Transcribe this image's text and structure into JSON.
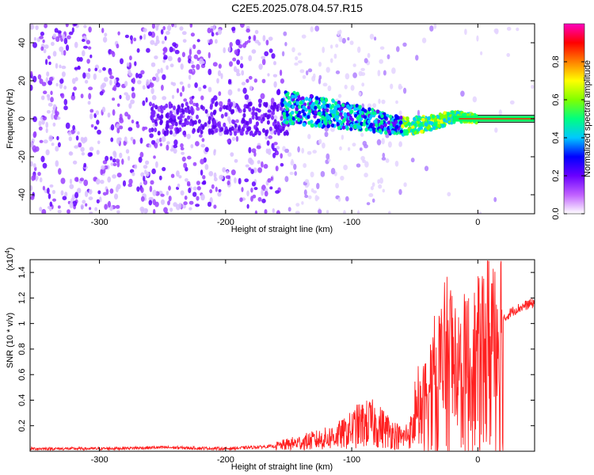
{
  "title": "C2E5.2025.078.04.57.R15",
  "chart_data": [
    {
      "type": "heatmap",
      "xlabel": "Height of straight line (km)",
      "ylabel": "Frequency (Hz)",
      "xlim": [
        -355,
        45
      ],
      "ylim": [
        -50,
        50
      ],
      "xticks": [
        "-300",
        "-200",
        "-100",
        "0"
      ],
      "yticks": [
        "-40",
        "-20",
        "0",
        "20",
        "40"
      ],
      "colorbar": {
        "label": "Normalized spectral amplitude",
        "ticks": [
          "0.0",
          "0.2",
          "0.4",
          "0.6",
          "0.8"
        ],
        "range": [
          0,
          1
        ],
        "colors": [
          "#ffffff",
          "#c060ff",
          "#6a00ff",
          "#0000ff",
          "#00c8ff",
          "#00ff80",
          "#80ff00",
          "#ffff00",
          "#ff8000",
          "#ff0000",
          "#ff00c0"
        ]
      },
      "ridge": [
        {
          "x": -150,
          "y": 6
        },
        {
          "x": -130,
          "y": 4
        },
        {
          "x": -110,
          "y": 2
        },
        {
          "x": -90,
          "y": 0
        },
        {
          "x": -70,
          "y": -3
        },
        {
          "x": -55,
          "y": -4
        },
        {
          "x": -45,
          "y": -3
        },
        {
          "x": -30,
          "y": -1
        },
        {
          "x": -20,
          "y": 1
        },
        {
          "x": -10,
          "y": 1
        },
        {
          "x": 0,
          "y": 0
        },
        {
          "x": 20,
          "y": 0
        },
        {
          "x": 45,
          "y": 0
        }
      ]
    },
    {
      "type": "line",
      "xlabel": "Height of straight line (km)",
      "ylabel": "SNR (10 * v/v)",
      "multiplier": "(x10",
      "multiplier_exp": "4",
      "multiplier_close": ")",
      "xlim": [
        -355,
        45
      ],
      "ylim": [
        0,
        1.5
      ],
      "xticks": [
        "-300",
        "-200",
        "-100",
        "0"
      ],
      "yticks": [
        "0.2",
        "0.4",
        "0.6",
        "0.8",
        "1",
        "1.2",
        "1.4"
      ],
      "color": "#ff2020",
      "series": [
        {
          "points": [
            [
              -355,
              0.02
            ],
            [
              -300,
              0.02
            ],
            [
              -250,
              0.03
            ],
            [
              -200,
              0.02
            ],
            [
              -160,
              0.04
            ],
            [
              -140,
              0.07
            ],
            [
              -120,
              0.1
            ],
            [
              -105,
              0.14
            ],
            [
              -95,
              0.2
            ],
            [
              -85,
              0.22
            ],
            [
              -75,
              0.18
            ],
            [
              -60,
              0.1
            ],
            [
              -50,
              0.18
            ],
            [
              -40,
              0.4
            ],
            [
              -30,
              0.6
            ],
            [
              -20,
              0.7
            ],
            [
              -15,
              0.55
            ],
            [
              -10,
              0.6
            ],
            [
              0,
              0.65
            ],
            [
              5,
              0.75
            ],
            [
              10,
              0.85
            ],
            [
              15,
              0.95
            ],
            [
              20,
              1.02
            ],
            [
              25,
              1.08
            ],
            [
              30,
              1.11
            ],
            [
              35,
              1.13
            ],
            [
              40,
              1.15
            ],
            [
              45,
              1.16
            ]
          ]
        }
      ]
    }
  ]
}
